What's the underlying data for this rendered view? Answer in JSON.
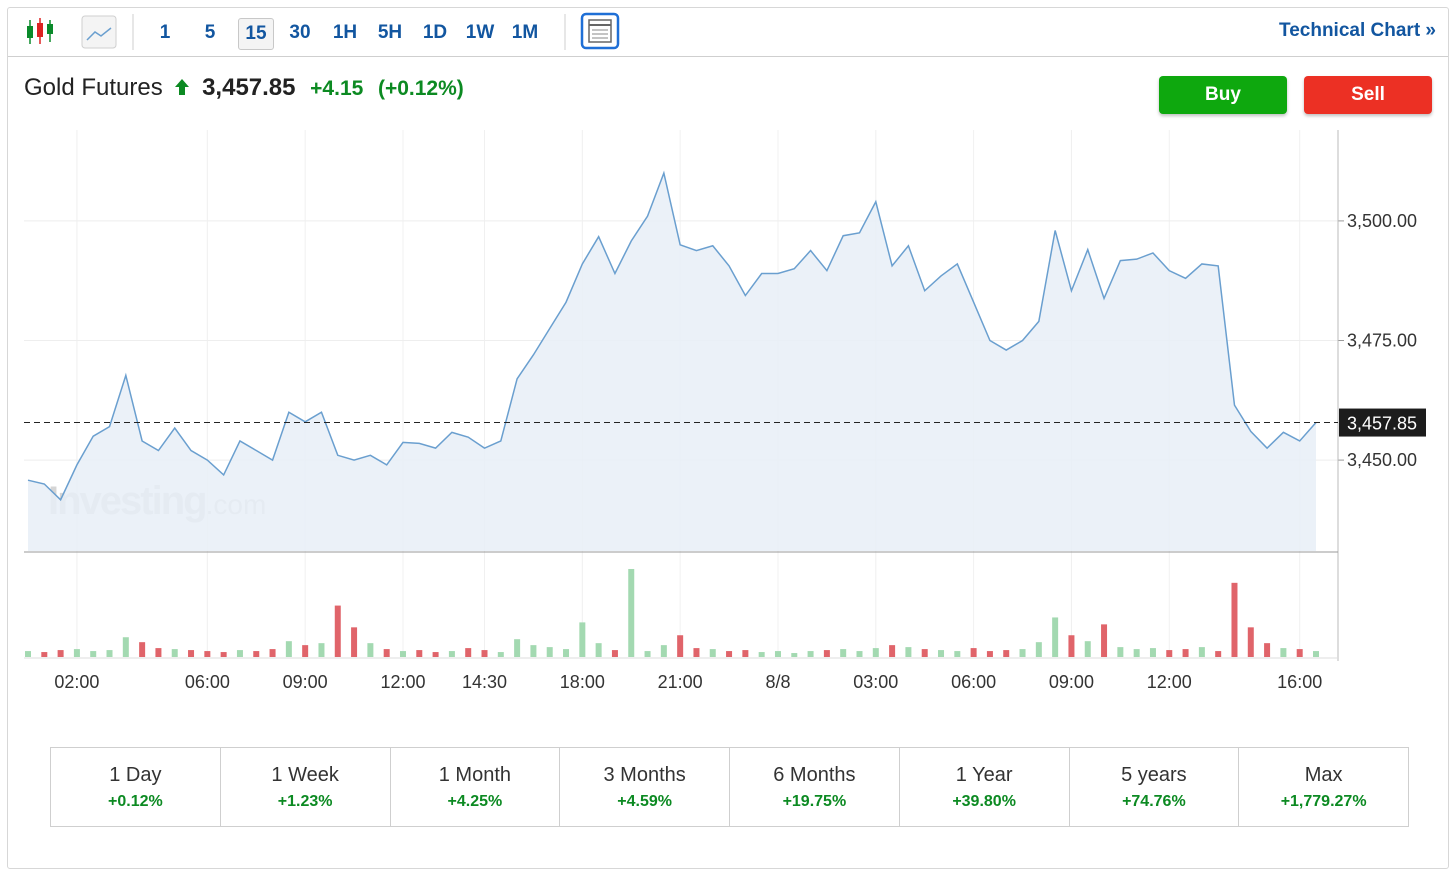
{
  "toolbar": {
    "intervals": [
      "1",
      "5",
      "15",
      "30",
      "1H",
      "5H",
      "1D",
      "1W",
      "1M"
    ],
    "selected": 2,
    "link": "Technical Chart »"
  },
  "header": {
    "name": "Gold Futures",
    "price": "3,457.85",
    "change": "+4.15",
    "change_pct": "(+0.12%)"
  },
  "actions": {
    "buy": "Buy",
    "sell": "Sell"
  },
  "watermark": {
    "brand": "Investing",
    "suffix": ".com"
  },
  "chart_data": {
    "type": "line",
    "categories": [
      null,
      null,
      null,
      "02:00",
      null,
      null,
      null,
      null,
      null,
      null,
      null,
      "06:00",
      null,
      null,
      null,
      null,
      null,
      "09:00",
      null,
      null,
      null,
      null,
      null,
      "12:00",
      null,
      null,
      null,
      null,
      "14:30",
      null,
      null,
      null,
      null,
      null,
      "18:00",
      null,
      null,
      null,
      null,
      null,
      "21:00",
      null,
      null,
      null,
      null,
      null,
      "8/8",
      null,
      null,
      null,
      null,
      null,
      "03:00",
      null,
      null,
      null,
      null,
      null,
      "06:00",
      null,
      null,
      null,
      null,
      null,
      "09:00",
      null,
      null,
      null,
      null,
      null,
      "12:00",
      null,
      null,
      null,
      null,
      null,
      null,
      null,
      "16:00",
      null
    ],
    "series": [
      {
        "name": "Gold Futures",
        "color": "#6a9fcf",
        "fill": "#e7eef7",
        "values": [
          3445.8,
          3445,
          3441.7,
          3449,
          3455,
          3457,
          3467.7,
          3454,
          3452,
          3456.7,
          3452,
          3450,
          3446.9,
          3454,
          3452,
          3450,
          3460,
          3458,
          3460,
          3451,
          3450,
          3451,
          3449,
          3453.7,
          3453.5,
          3452.5,
          3455.8,
          3454.8,
          3452.5,
          3454,
          3467,
          3472,
          3477.5,
          3483,
          3491,
          3496.7,
          3489,
          3495.8,
          3501,
          3510,
          3495,
          3493.8,
          3494.8,
          3490.6,
          3484.4,
          3489,
          3489,
          3490,
          3493.8,
          3489.6,
          3496.9,
          3497.5,
          3504,
          3490.6,
          3494.8,
          3485.4,
          3488.5,
          3491,
          3483,
          3475,
          3473,
          3475,
          3479,
          3498,
          3485.4,
          3494,
          3483.8,
          3491.7,
          3492,
          3493.3,
          3489.6,
          3488,
          3491,
          3490.6,
          3461.5,
          3456,
          3452.5,
          3455.8,
          3454,
          3457.85
        ]
      }
    ],
    "ylim": [
      3431,
      3519
    ],
    "yticks": [
      {
        "value": 3450,
        "label": "3,450.00"
      },
      {
        "value": 3475,
        "label": "3,475.00"
      },
      {
        "value": 3500,
        "label": "3,500.00"
      }
    ],
    "last": {
      "value": 3457.85,
      "label": "3,457.85"
    },
    "grid": true,
    "volume": {
      "ylim": [
        0,
        90
      ],
      "up_color": "#a3d9b1",
      "down_color": "#e0646a",
      "values": [
        6,
        5,
        7,
        8,
        6,
        7,
        20,
        15,
        9,
        8,
        7,
        6,
        5,
        7,
        6,
        8,
        16,
        12,
        14,
        52,
        30,
        14,
        8,
        6,
        7,
        5,
        6,
        9,
        7,
        5,
        18,
        12,
        10,
        8,
        35,
        14,
        7,
        89,
        6,
        12,
        22,
        9,
        8,
        6,
        7,
        5,
        6,
        4,
        6,
        7,
        8,
        6,
        9,
        12,
        10,
        8,
        7,
        6,
        9,
        6,
        7,
        8,
        15,
        40,
        22,
        16,
        33,
        10,
        8,
        9,
        7,
        8,
        10,
        6,
        75,
        30,
        14,
        9,
        8,
        6
      ]
    }
  },
  "periods": [
    {
      "label": "1 Day",
      "change": "+0.12%"
    },
    {
      "label": "1 Week",
      "change": "+1.23%"
    },
    {
      "label": "1 Month",
      "change": "+4.25%"
    },
    {
      "label": "3 Months",
      "change": "+4.59%"
    },
    {
      "label": "6 Months",
      "change": "+19.75%"
    },
    {
      "label": "1 Year",
      "change": "+39.80%"
    },
    {
      "label": "5 years",
      "change": "+74.76%"
    },
    {
      "label": "Max",
      "change": "+1,779.27%"
    }
  ]
}
